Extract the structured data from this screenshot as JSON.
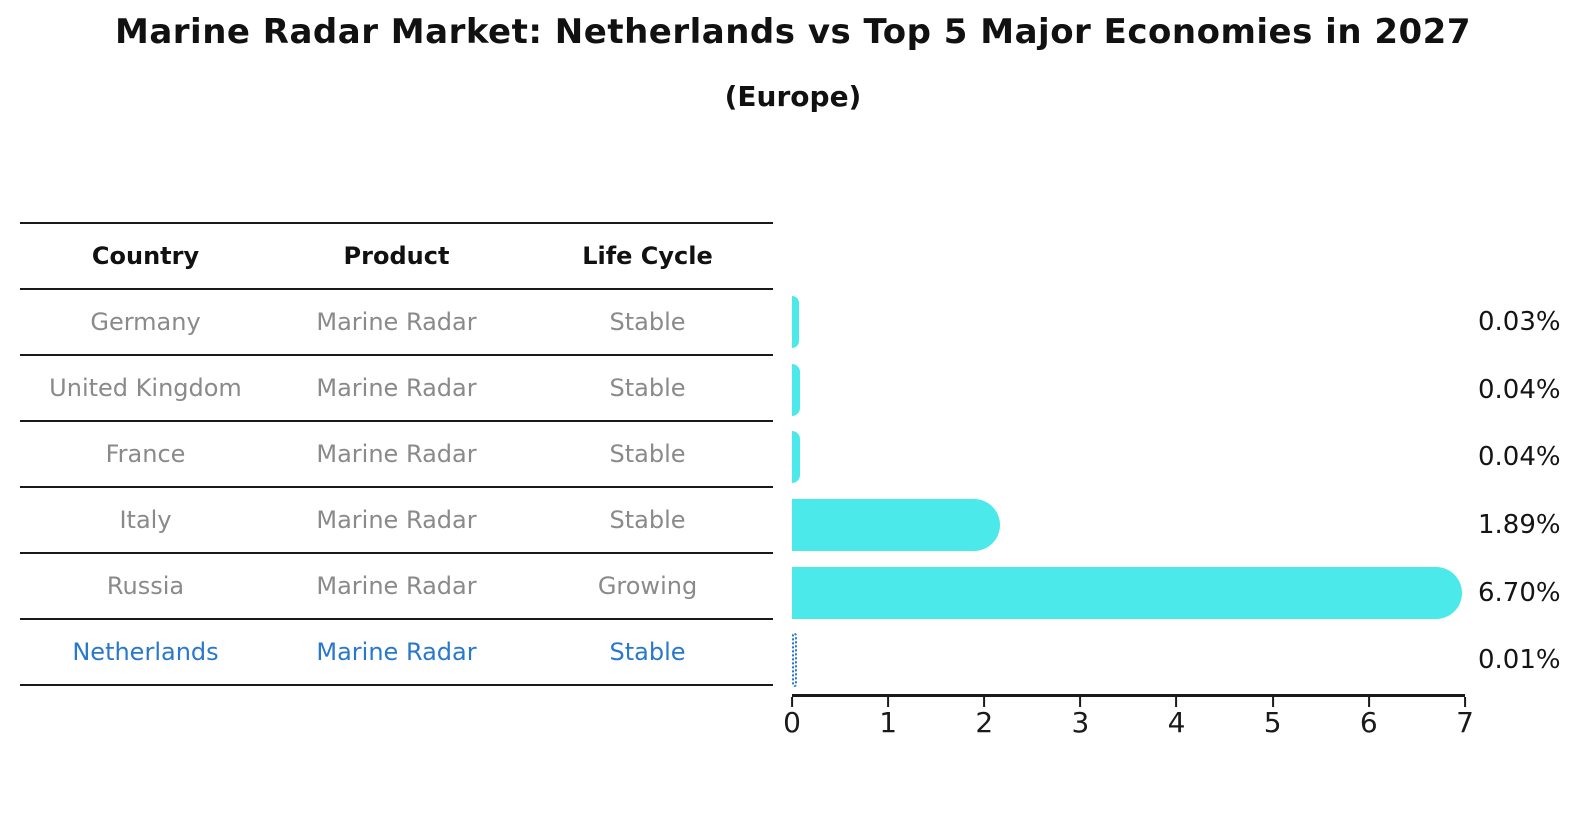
{
  "title": "Marine Radar Market: Netherlands vs Top 5 Major Economies in 2027",
  "subtitle": "(Europe)",
  "table": {
    "headers": [
      "Country",
      "Product",
      "Life Cycle"
    ],
    "rows": [
      {
        "country": "Germany",
        "product": "Marine Radar",
        "life_cycle": "Stable"
      },
      {
        "country": "United Kingdom",
        "product": "Marine Radar",
        "life_cycle": "Stable"
      },
      {
        "country": "France",
        "product": "Marine Radar",
        "life_cycle": "Stable"
      },
      {
        "country": "Italy",
        "product": "Marine Radar",
        "life_cycle": "Stable"
      },
      {
        "country": "Russia",
        "product": "Marine Radar",
        "life_cycle": "Growing"
      },
      {
        "country": "Netherlands",
        "product": "Marine Radar",
        "life_cycle": "Stable"
      }
    ],
    "highlighted_row": "Netherlands"
  },
  "chart_data": {
    "type": "bar",
    "orientation": "horizontal",
    "title": "Marine Radar Market: Netherlands vs Top 5 Major Economies in 2027",
    "subtitle": "(Europe)",
    "categories": [
      "Germany",
      "United Kingdom",
      "France",
      "Italy",
      "Russia",
      "Netherlands"
    ],
    "values": [
      0.03,
      0.04,
      0.04,
      1.89,
      6.7,
      0.01
    ],
    "value_labels": [
      "0.03%",
      "0.04%",
      "0.04%",
      "1.89%",
      "6.70%",
      "0.01%"
    ],
    "xlim": [
      0,
      7
    ],
    "xticks": [
      "0",
      "1",
      "2",
      "3",
      "4",
      "5",
      "6",
      "7"
    ],
    "grid": false,
    "legend": false,
    "bar_color": "#4BE9E9",
    "highlight_color": "#2878CD",
    "highlight_category": "Netherlands",
    "highlight_style": "dotted-outline"
  }
}
